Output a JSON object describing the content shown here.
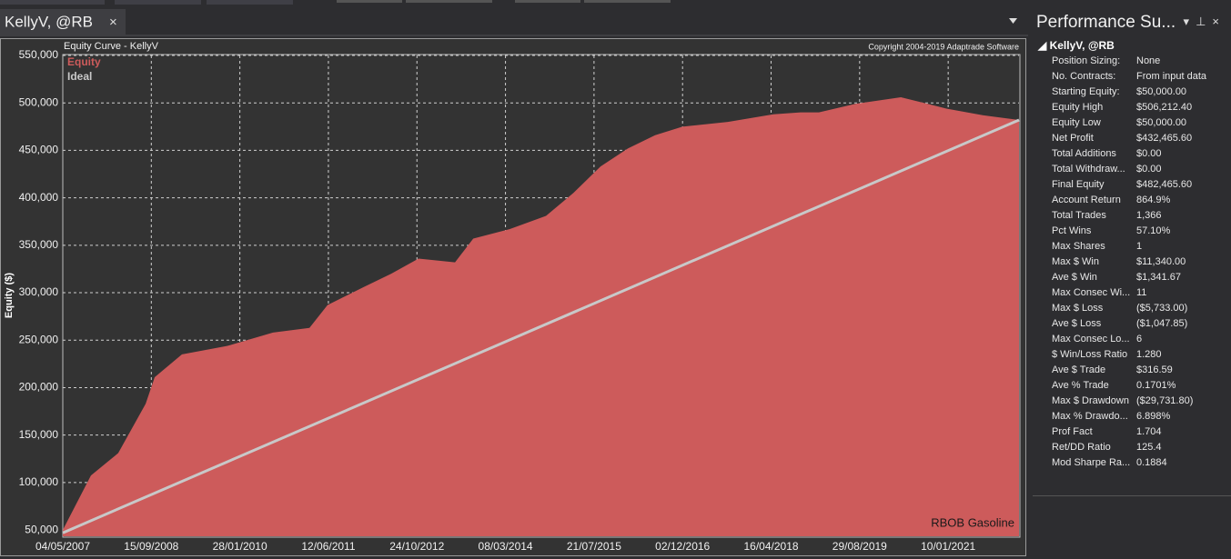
{
  "tab": {
    "title": "KellyV, @RB",
    "close": "×"
  },
  "panel": {
    "title": "Performance Su...",
    "section": "KellyV, @RB",
    "rows": [
      [
        "Position Sizing:",
        "None"
      ],
      [
        "No. Contracts:",
        "From input data"
      ],
      [
        "Starting Equity:",
        "$50,000.00"
      ],
      [
        "Equity High",
        "$506,212.40"
      ],
      [
        "Equity Low",
        "$50,000.00"
      ],
      [
        "Net Profit",
        "$432,465.60"
      ],
      [
        "Total Additions",
        "$0.00"
      ],
      [
        "Total Withdraw...",
        "$0.00"
      ],
      [
        "Final Equity",
        "$482,465.60"
      ],
      [
        "Account Return",
        "864.9%"
      ],
      [
        "Total Trades",
        "1,366"
      ],
      [
        "Pct Wins",
        "57.10%"
      ],
      [
        "Max Shares",
        "1"
      ],
      [
        "Max $ Win",
        "$11,340.00"
      ],
      [
        "Ave $ Win",
        "$1,341.67"
      ],
      [
        "Max Consec Wi...",
        "11"
      ],
      [
        "Max $ Loss",
        "($5,733.00)"
      ],
      [
        "Ave $ Loss",
        "($1,047.85)"
      ],
      [
        "Max Consec Lo...",
        "6"
      ],
      [
        "$ Win/Loss Ratio",
        "1.280"
      ],
      [
        "Ave $ Trade",
        "$316.59"
      ],
      [
        "Ave % Trade",
        "0.1701%"
      ],
      [
        "Max $ Drawdown",
        "($29,731.80)"
      ],
      [
        "Max % Drawdo...",
        "6.898%"
      ],
      [
        "Prof Fact",
        "1.704"
      ],
      [
        "Ret/DD Ratio",
        "125.4"
      ],
      [
        "Mod Sharpe Ra...",
        "0.1884"
      ]
    ]
  },
  "chart_data": {
    "type": "area",
    "title": "Equity Curve - KellyV",
    "copyright": "Copyright 2004-2019 Adaptrade Software",
    "annotation": "RBOB Gasoline",
    "y_label": "Equity ($)",
    "grid": true,
    "xlim": [
      "04/05/2007",
      "14/02/2022"
    ],
    "xticks": [
      "04/05/2007",
      "15/09/2008",
      "28/01/2010",
      "12/06/2011",
      "24/10/2012",
      "08/03/2014",
      "21/07/2015",
      "02/12/2016",
      "16/04/2018",
      "29/08/2019",
      "10/01/2021"
    ],
    "ylim": [
      43400,
      550000
    ],
    "yticks": [
      {
        "value": 50000,
        "label": "50,000"
      },
      {
        "value": 100000,
        "label": "100,000"
      },
      {
        "value": 150000,
        "label": "150,000"
      },
      {
        "value": 200000,
        "label": "200,000"
      },
      {
        "value": 250000,
        "label": "250,000"
      },
      {
        "value": 300000,
        "label": "300,000"
      },
      {
        "value": 350000,
        "label": "350,000"
      },
      {
        "value": 400000,
        "label": "400,000"
      },
      {
        "value": 450000,
        "label": "450,000"
      },
      {
        "value": 500000,
        "label": "500,000"
      },
      {
        "value": 550000,
        "label": "550,000"
      }
    ],
    "series": [
      {
        "name": "Equity",
        "color": "#cd5b5b",
        "x": [
          "04/05/2007",
          "10/10/2007",
          "12/03/2008",
          "14/08/2008",
          "04/10/2008",
          "07/03/2009",
          "19/11/2009",
          "03/08/2010",
          "25/02/2011",
          "07/06/2011",
          "29/12/2011",
          "01/06/2012",
          "02/11/2012",
          "27/05/2013",
          "07/09/2013",
          "31/03/2014",
          "23/10/2014",
          "26/03/2015",
          "27/08/2015",
          "28/01/2016",
          "30/06/2016",
          "01/12/2016",
          "15/08/2017",
          "29/04/2018",
          "30/09/2018",
          "11/01/2019",
          "05/08/2019",
          "18/04/2020",
          "31/12/2020",
          "24/07/2021",
          "14/02/2022"
        ],
        "values": [
          50000,
          107500,
          131000,
          183000,
          211000,
          235000,
          244000,
          258000,
          263000,
          287000,
          306000,
          320000,
          336000,
          332000,
          357000,
          367000,
          381000,
          405000,
          433000,
          452000,
          466000,
          475000,
          480000,
          488000,
          490000,
          490000,
          499000,
          506000,
          494000,
          487000,
          482000
        ]
      },
      {
        "name": "Ideal",
        "color": "#c8c8c8",
        "x": [
          "04/05/2007",
          "14/02/2022"
        ],
        "values": [
          47000,
          482000
        ]
      }
    ]
  }
}
